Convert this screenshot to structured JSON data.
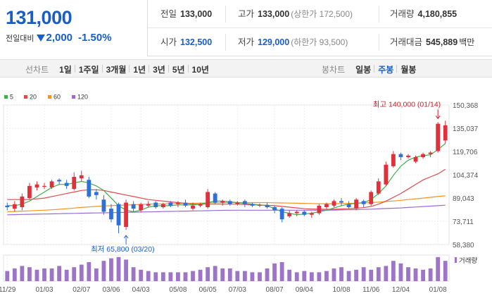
{
  "summary": {
    "current_price": "131,000",
    "change_label": "전일대비",
    "change_value": "2,000",
    "change_pct": "-1.50%",
    "fields": [
      {
        "label": "전일",
        "value": "133,000",
        "color": "normal",
        "sub": ""
      },
      {
        "label": "고가",
        "value": "133,000",
        "color": "normal",
        "sub": "(상한가 172,500)"
      },
      {
        "label": "거래량",
        "value": "4,180,855",
        "color": "normal",
        "sub": ""
      },
      {
        "label": "시가",
        "value": "132,500",
        "color": "blue",
        "sub": ""
      },
      {
        "label": "저가",
        "value": "129,000",
        "color": "blue",
        "sub": "(하한가 93,500)"
      },
      {
        "label": "거래대금",
        "value": "545,889",
        "color": "normal",
        "sub": "백만"
      }
    ]
  },
  "tabs": {
    "left_label": "선차트",
    "left": [
      "1일",
      "1주일",
      "3개월",
      "1년",
      "3년",
      "5년",
      "10년"
    ],
    "right_label": "봉차트",
    "right": [
      "일봉",
      "주봉",
      "월봉"
    ],
    "right_active": 1
  },
  "chart_data": {
    "type": "candlestick",
    "legend": [
      {
        "name": "5",
        "color": "#3fae49"
      },
      {
        "name": "20",
        "color": "#e0494a"
      },
      {
        "name": "60",
        "color": "#f39422"
      },
      {
        "name": "120",
        "color": "#9b6bd1"
      }
    ],
    "y_ticks": [
      150368,
      135037,
      119706,
      104374,
      89043,
      73711,
      58380
    ],
    "y_tick_labels": [
      "150,368",
      "135,037",
      "119,706",
      "104,374",
      "89,043",
      "73,711",
      "58,380"
    ],
    "ylim": [
      58380,
      150368
    ],
    "x_ticks": [
      {
        "label": "11/29",
        "i": 0
      },
      {
        "label": "01/03",
        "i": 5
      },
      {
        "label": "02/07",
        "i": 10
      },
      {
        "label": "03/06",
        "i": 14
      },
      {
        "label": "04/03",
        "i": 18
      },
      {
        "label": "05/08",
        "i": 23
      },
      {
        "label": "06/05",
        "i": 27
      },
      {
        "label": "07/03",
        "i": 31
      },
      {
        "label": "08/07",
        "i": 36
      },
      {
        "label": "09/04",
        "i": 40
      },
      {
        "label": "10/08",
        "i": 45
      },
      {
        "label": "11/06",
        "i": 49
      },
      {
        "label": "12/04",
        "i": 53
      },
      {
        "label": "01/08",
        "i": 58
      }
    ],
    "annotations": {
      "high": {
        "text": "최고 140,000 (01/14)",
        "i": 58,
        "value": 140000
      },
      "low": {
        "text": "최저 65,800 (03/20)",
        "i": 16,
        "value": 65800
      }
    },
    "volume_label": "거래량",
    "candles": [
      {
        "o": 84000,
        "c": 83000,
        "h": 86000,
        "l": 81000
      },
      {
        "o": 82000,
        "c": 85000,
        "h": 87000,
        "l": 80000
      },
      {
        "o": 83000,
        "c": 90000,
        "h": 92000,
        "l": 81000
      },
      {
        "o": 89000,
        "c": 97000,
        "h": 99000,
        "l": 88000
      },
      {
        "o": 96000,
        "c": 98000,
        "h": 100000,
        "l": 94000
      },
      {
        "o": 97000,
        "c": 97000,
        "h": 99000,
        "l": 95000
      },
      {
        "o": 96000,
        "c": 100000,
        "h": 101000,
        "l": 95000
      },
      {
        "o": 101000,
        "c": 100000,
        "h": 102000,
        "l": 98000
      },
      {
        "o": 99000,
        "c": 97000,
        "h": 101000,
        "l": 95000
      },
      {
        "o": 95000,
        "c": 103000,
        "h": 106000,
        "l": 94000
      },
      {
        "o": 102000,
        "c": 104000,
        "h": 107000,
        "l": 100000
      },
      {
        "o": 101000,
        "c": 90000,
        "h": 103000,
        "l": 89000
      },
      {
        "o": 93000,
        "c": 91000,
        "h": 95000,
        "l": 88000
      },
      {
        "o": 88000,
        "c": 80000,
        "h": 91000,
        "l": 78000
      },
      {
        "o": 82000,
        "c": 75000,
        "h": 85000,
        "l": 73000
      },
      {
        "o": 85000,
        "c": 71000,
        "h": 86000,
        "l": 65800
      },
      {
        "o": 70000,
        "c": 86000,
        "h": 88000,
        "l": 68000
      },
      {
        "o": 85000,
        "c": 82000,
        "h": 87000,
        "l": 80000
      },
      {
        "o": 81000,
        "c": 85000,
        "h": 86000,
        "l": 80000
      },
      {
        "o": 84000,
        "c": 85000,
        "h": 87000,
        "l": 83000
      },
      {
        "o": 86000,
        "c": 83000,
        "h": 87000,
        "l": 82000
      },
      {
        "o": 83000,
        "c": 85000,
        "h": 86000,
        "l": 82000
      },
      {
        "o": 86000,
        "c": 84000,
        "h": 87000,
        "l": 83000
      },
      {
        "o": 85000,
        "c": 86000,
        "h": 87000,
        "l": 83000
      },
      {
        "o": 86000,
        "c": 84000,
        "h": 88000,
        "l": 83000
      },
      {
        "o": 82000,
        "c": 84000,
        "h": 86000,
        "l": 81000
      },
      {
        "o": 84000,
        "c": 85000,
        "h": 86000,
        "l": 83000
      },
      {
        "o": 83000,
        "c": 93000,
        "h": 95000,
        "l": 82000
      },
      {
        "o": 92000,
        "c": 86000,
        "h": 93000,
        "l": 85000
      },
      {
        "o": 86000,
        "c": 87000,
        "h": 88000,
        "l": 84000
      },
      {
        "o": 87000,
        "c": 85000,
        "h": 88000,
        "l": 84000
      },
      {
        "o": 85000,
        "c": 86000,
        "h": 87000,
        "l": 84000
      },
      {
        "o": 87000,
        "c": 85000,
        "h": 88000,
        "l": 83000
      },
      {
        "o": 85000,
        "c": 84000,
        "h": 86000,
        "l": 83000
      },
      {
        "o": 84000,
        "c": 84500,
        "h": 85500,
        "l": 83000
      },
      {
        "o": 84500,
        "c": 83000,
        "h": 86000,
        "l": 82000
      },
      {
        "o": 83000,
        "c": 81000,
        "h": 84000,
        "l": 79000
      },
      {
        "o": 82000,
        "c": 75000,
        "h": 83000,
        "l": 73000
      },
      {
        "o": 77000,
        "c": 79000,
        "h": 81000,
        "l": 76000
      },
      {
        "o": 79000,
        "c": 80000,
        "h": 81000,
        "l": 77000
      },
      {
        "o": 80000,
        "c": 78000,
        "h": 81000,
        "l": 77000
      },
      {
        "o": 78000,
        "c": 79000,
        "h": 80000,
        "l": 76000
      },
      {
        "o": 79000,
        "c": 84000,
        "h": 85000,
        "l": 78000
      },
      {
        "o": 83000,
        "c": 85000,
        "h": 86000,
        "l": 82000
      },
      {
        "o": 84000,
        "c": 87000,
        "h": 88000,
        "l": 83000
      },
      {
        "o": 87000,
        "c": 86000,
        "h": 89000,
        "l": 84000
      },
      {
        "o": 85000,
        "c": 83000,
        "h": 87000,
        "l": 82000
      },
      {
        "o": 82000,
        "c": 88000,
        "h": 89000,
        "l": 81000
      },
      {
        "o": 87000,
        "c": 85000,
        "h": 88000,
        "l": 83000
      },
      {
        "o": 85000,
        "c": 93000,
        "h": 94000,
        "l": 84000
      },
      {
        "o": 92000,
        "c": 100000,
        "h": 102000,
        "l": 91000
      },
      {
        "o": 98000,
        "c": 111000,
        "h": 113000,
        "l": 97000
      },
      {
        "o": 110000,
        "c": 118000,
        "h": 120000,
        "l": 109000
      },
      {
        "o": 118000,
        "c": 116000,
        "h": 119000,
        "l": 114000
      },
      {
        "o": 116000,
        "c": 117000,
        "h": 118000,
        "l": 115000
      },
      {
        "o": 113000,
        "c": 116000,
        "h": 117000,
        "l": 112000
      },
      {
        "o": 116000,
        "c": 118000,
        "h": 119000,
        "l": 115000
      },
      {
        "o": 118000,
        "c": 119000,
        "h": 120000,
        "l": 116000
      },
      {
        "o": 120000,
        "c": 138000,
        "h": 139000,
        "l": 119000
      },
      {
        "o": 127000,
        "c": 137000,
        "h": 140000,
        "l": 125000
      }
    ],
    "volume": [
      0.4,
      0.5,
      0.6,
      0.55,
      0.45,
      0.5,
      0.5,
      0.6,
      0.45,
      0.55,
      0.65,
      0.75,
      0.5,
      0.8,
      0.9,
      0.95,
      0.85,
      0.55,
      0.45,
      0.4,
      0.35,
      0.35,
      0.35,
      0.35,
      0.35,
      0.4,
      0.45,
      0.55,
      0.6,
      0.5,
      0.5,
      0.4,
      0.4,
      0.35,
      0.35,
      0.5,
      0.7,
      0.75,
      0.45,
      0.35,
      0.4,
      0.35,
      0.35,
      0.4,
      0.5,
      0.55,
      0.4,
      0.45,
      0.55,
      0.45,
      0.55,
      0.6,
      0.8,
      0.7,
      0.55,
      0.5,
      0.45,
      0.5,
      0.95,
      0.8
    ],
    "ma": {
      "5": [
        84000,
        84000,
        85000,
        87000,
        90000,
        93000,
        96000,
        98000,
        98000,
        99000,
        100000,
        99000,
        97000,
        94000,
        89000,
        84000,
        81000,
        80000,
        81000,
        83000,
        84000,
        84000,
        84000,
        84500,
        84500,
        84500,
        85000,
        86000,
        87000,
        87000,
        86500,
        86000,
        85500,
        85000,
        84500,
        84000,
        82000,
        80000,
        79000,
        78000,
        78500,
        79000,
        80000,
        81000,
        82500,
        84000,
        85000,
        85500,
        86000,
        88000,
        92000,
        97000,
        104000,
        110000,
        114000,
        116000,
        117000,
        117500,
        121000,
        125000
      ],
      "20": [
        88000,
        88000,
        88000,
        88000,
        88500,
        89000,
        90000,
        91000,
        92000,
        93000,
        94000,
        94500,
        94500,
        94000,
        93000,
        92000,
        91000,
        90000,
        89000,
        88000,
        87500,
        87000,
        86500,
        86000,
        85500,
        85000,
        85000,
        85000,
        85000,
        85000,
        85000,
        85000,
        84800,
        84600,
        84400,
        84200,
        84000,
        83500,
        83000,
        82500,
        82000,
        81800,
        81700,
        81600,
        81600,
        81800,
        82000,
        82300,
        82700,
        83500,
        85000,
        87000,
        89500,
        92000,
        95000,
        98000,
        101000,
        103000,
        105000,
        108000
      ],
      "60": [
        80000,
        80200,
        80400,
        80600,
        80800,
        81000,
        81300,
        81600,
        82000,
        82400,
        82800,
        83200,
        83500,
        83800,
        84000,
        84200,
        84400,
        84600,
        84800,
        85000,
        85100,
        85200,
        85300,
        85400,
        85500,
        85600,
        85700,
        85800,
        85900,
        86000,
        86000,
        86000,
        86000,
        86000,
        86000,
        86000,
        85900,
        85800,
        85700,
        85600,
        85500,
        85400,
        85300,
        85300,
        85300,
        85400,
        85500,
        85600,
        85800,
        86000,
        86300,
        86700,
        87100,
        87500,
        88000,
        88500,
        89000,
        89500,
        90000,
        90500
      ],
      "120": [
        78000,
        78100,
        78200,
        78300,
        78400,
        78500,
        78600,
        78700,
        78800,
        78900,
        79000,
        79100,
        79200,
        79300,
        79400,
        79500,
        79600,
        79700,
        79800,
        79900,
        80000,
        80100,
        80200,
        80300,
        80400,
        80500,
        80600,
        80700,
        80800,
        80900,
        81000,
        81000,
        81000,
        81000,
        81000,
        81000,
        81000,
        81000,
        81000,
        81000,
        81000,
        81000,
        81000,
        81000,
        81100,
        81200,
        81300,
        81400,
        81500,
        81700,
        81900,
        82100,
        82300,
        82500,
        82800,
        83100,
        83400,
        83700,
        84000,
        84300
      ]
    }
  }
}
